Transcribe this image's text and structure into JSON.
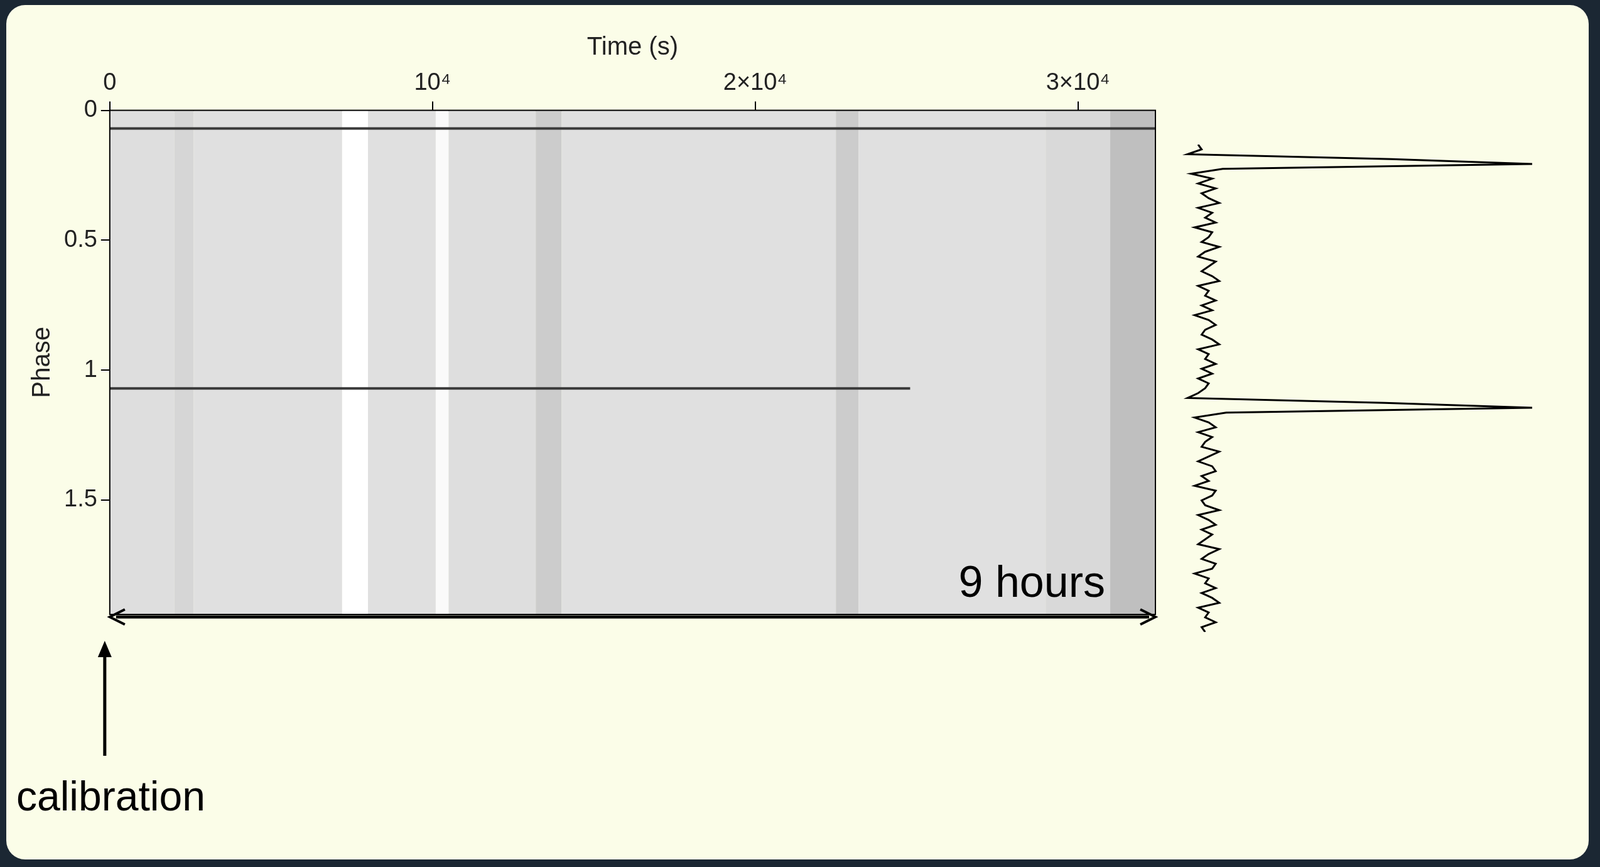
{
  "chart_data": [
    {
      "type": "heatmap",
      "x_label": "Time (s)",
      "y_label": "Phase",
      "xlim": [
        0,
        32400
      ],
      "xticks": [
        0,
        {
          "value": 10000,
          "label": "10⁴"
        },
        {
          "value": 20000,
          "label": "2×10⁴"
        },
        {
          "value": 30000,
          "label": "3×10⁴"
        }
      ],
      "ylim": [
        0,
        1.94
      ],
      "yticks": [
        0,
        0.5,
        1,
        1.5
      ],
      "bands": [
        {
          "start": 0,
          "end": 2000,
          "level": 0.87
        },
        {
          "start": 2000,
          "end": 2600,
          "level": 0.84
        },
        {
          "start": 2600,
          "end": 7200,
          "level": 0.88
        },
        {
          "start": 7200,
          "end": 8000,
          "level": 1.0
        },
        {
          "start": 8000,
          "end": 10100,
          "level": 0.88
        },
        {
          "start": 10100,
          "end": 10500,
          "level": 0.98
        },
        {
          "start": 10500,
          "end": 13200,
          "level": 0.87
        },
        {
          "start": 13200,
          "end": 14000,
          "level": 0.8
        },
        {
          "start": 14000,
          "end": 22500,
          "level": 0.88
        },
        {
          "start": 22500,
          "end": 23200,
          "level": 0.8
        },
        {
          "start": 23200,
          "end": 29000,
          "level": 0.88
        },
        {
          "start": 29000,
          "end": 31000,
          "level": 0.85
        },
        {
          "start": 31000,
          "end": 32400,
          "level": 0.75
        }
      ],
      "pulse_lines": [
        {
          "phase": 0.07,
          "x": [
            0,
            32400
          ],
          "color": "#3a3a3a"
        },
        {
          "phase": 1.07,
          "x": [
            0,
            24800
          ],
          "color": "#3a3a3a"
        }
      ],
      "annotations": [
        {
          "text": "9 hours",
          "x_start": 0,
          "x_end": 32400
        },
        {
          "text": "calibration",
          "x": 0
        }
      ]
    },
    {
      "type": "line",
      "orientation": "horizontal",
      "tick_labels": false,
      "color": "#000000",
      "xlim": [
        0,
        1
      ],
      "ylim": [
        0,
        2
      ],
      "phase": [
        0,
        0.02,
        0.04,
        0.06,
        0.08,
        0.1,
        0.12,
        0.14,
        0.16,
        0.18,
        0.2,
        0.22,
        0.24,
        0.26,
        0.28,
        0.3,
        0.32,
        0.34,
        0.36,
        0.38,
        0.4,
        0.42,
        0.44,
        0.46,
        0.48,
        0.5,
        0.52,
        0.54,
        0.56,
        0.58,
        0.6,
        0.62,
        0.64,
        0.66,
        0.68,
        0.7,
        0.72,
        0.74,
        0.76,
        0.78,
        0.8,
        0.82,
        0.84,
        0.86,
        0.88,
        0.9,
        0.92,
        0.94,
        0.96,
        0.98,
        1,
        1.02,
        1.04,
        1.06,
        1.08,
        1.1,
        1.12,
        1.14,
        1.16,
        1.18,
        1.2,
        1.22,
        1.24,
        1.26,
        1.28,
        1.3,
        1.32,
        1.34,
        1.36,
        1.38,
        1.4,
        1.42,
        1.44,
        1.46,
        1.48,
        1.5,
        1.52,
        1.54,
        1.56,
        1.58,
        1.6,
        1.62,
        1.64,
        1.66,
        1.68,
        1.7,
        1.72,
        1.74,
        1.76,
        1.78,
        1.8,
        1.82,
        1.84,
        1.86,
        1.88,
        1.9,
        1.92,
        1.94,
        1.96,
        1.98,
        2
      ],
      "values": [
        0.05,
        0.06,
        0.02,
        0.6,
        1.0,
        0.12,
        0.03,
        0.09,
        0.05,
        0.1,
        0.06,
        0.08,
        0.11,
        0.05,
        0.09,
        0.07,
        0.1,
        0.04,
        0.09,
        0.08,
        0.06,
        0.11,
        0.07,
        0.05,
        0.1,
        0.08,
        0.06,
        0.09,
        0.11,
        0.05,
        0.08,
        0.07,
        0.1,
        0.06,
        0.09,
        0.04,
        0.08,
        0.1,
        0.07,
        0.06,
        0.09,
        0.11,
        0.05,
        0.08,
        0.07,
        0.1,
        0.06,
        0.09,
        0.05,
        0.08,
        0.07,
        0.05,
        0.02,
        0.58,
        1.0,
        0.13,
        0.04,
        0.08,
        0.1,
        0.05,
        0.09,
        0.07,
        0.06,
        0.11,
        0.08,
        0.05,
        0.09,
        0.1,
        0.06,
        0.08,
        0.04,
        0.1,
        0.09,
        0.06,
        0.07,
        0.11,
        0.05,
        0.08,
        0.1,
        0.06,
        0.09,
        0.07,
        0.05,
        0.11,
        0.08,
        0.06,
        0.1,
        0.09,
        0.04,
        0.08,
        0.07,
        0.1,
        0.06,
        0.09,
        0.11,
        0.05,
        0.08,
        0.07,
        0.1,
        0.06,
        0.07
      ]
    }
  ]
}
